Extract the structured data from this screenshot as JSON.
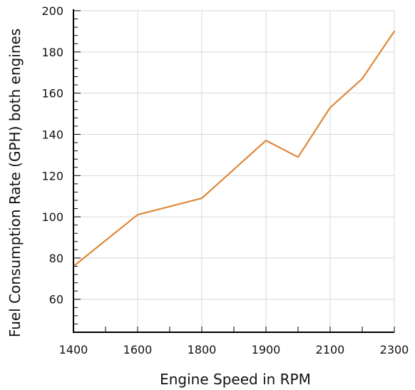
{
  "chart_data": {
    "type": "line",
    "title": "",
    "xlabel": "Engine Speed in RPM",
    "ylabel": "Fuel Consumption Rate (GPH) both engines",
    "x_tick_labels": [
      "1400",
      "1600",
      "1800",
      "1900",
      "2100",
      "2300"
    ],
    "y_ticks": [
      60,
      80,
      100,
      120,
      140,
      160,
      180,
      200
    ],
    "ylim": [
      44,
      200
    ],
    "grid": true,
    "series": [
      {
        "color": "#e0873a",
        "points": [
          {
            "x_pos": 0,
            "y": 76
          },
          {
            "x_pos": 2,
            "y": 101
          },
          {
            "x_pos": 4,
            "y": 109
          },
          {
            "x_pos": 6,
            "y": 137
          },
          {
            "x_pos": 7,
            "y": 129
          },
          {
            "x_pos": 8,
            "y": 153
          },
          {
            "x_pos": 9,
            "y": 167
          },
          {
            "x_pos": 10,
            "y": 190
          }
        ]
      }
    ],
    "x_positions_max": 10,
    "x_tick_label_positions": [
      0,
      2,
      4,
      6,
      8,
      10
    ]
  }
}
